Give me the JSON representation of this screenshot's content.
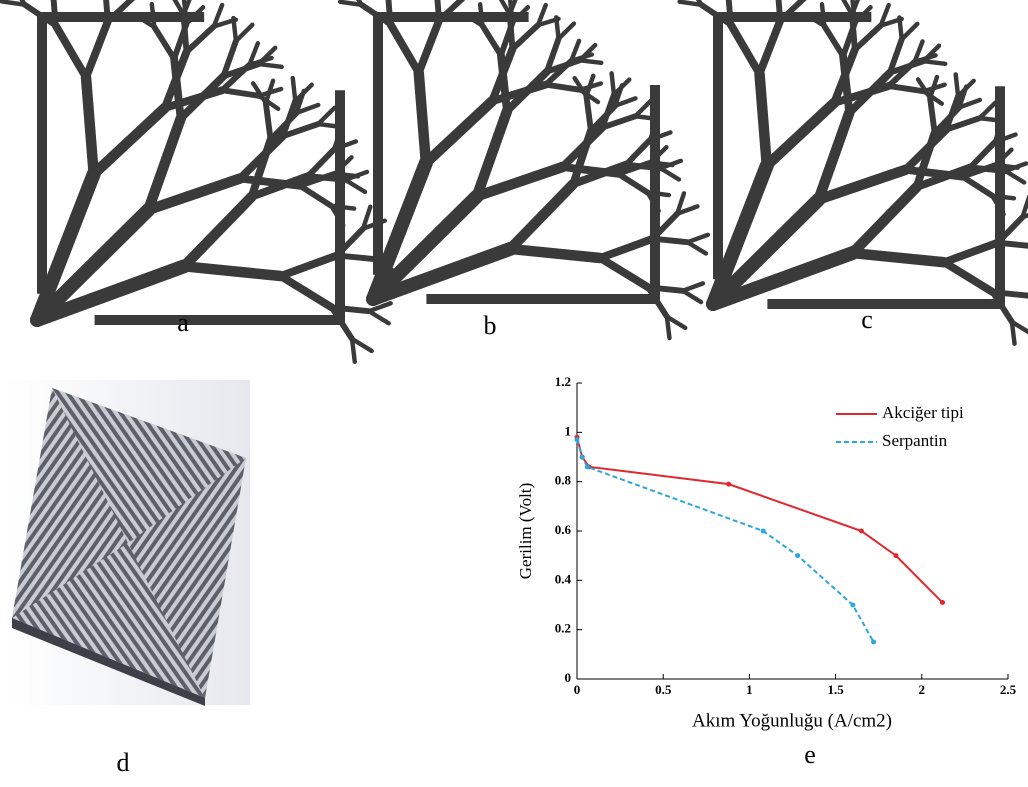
{
  "panel_labels": [
    "a",
    "b",
    "c",
    "d",
    "e"
  ],
  "chart_data": {
    "type": "line",
    "xlabel": "Akım Yoğunluğu (A/cm2)",
    "ylabel": "Gerilim (Volt)",
    "xlim": [
      0,
      2.5
    ],
    "xticks": [
      0,
      0.5,
      1,
      1.5,
      2,
      2.5
    ],
    "ylim": [
      0,
      1.2
    ],
    "yticks": [
      0,
      0.2,
      0.4,
      0.6,
      0.8,
      1,
      1.2
    ],
    "legend": "upper right",
    "series": [
      {
        "name": "Akciğer tipi",
        "color": "#e0282e",
        "x": [
          0,
          0.03,
          0.07,
          0.88,
          1.65,
          1.85,
          2.12
        ],
        "values": [
          0.98,
          0.9,
          0.86,
          0.79,
          0.6,
          0.5,
          0.31
        ]
      },
      {
        "name": "Serpantin",
        "color": "#2aa7db",
        "x": [
          0,
          0.03,
          0.06,
          1.08,
          1.28,
          1.6,
          1.72
        ],
        "values": [
          0.97,
          0.9,
          0.86,
          0.6,
          0.5,
          0.3,
          0.15
        ]
      }
    ]
  }
}
